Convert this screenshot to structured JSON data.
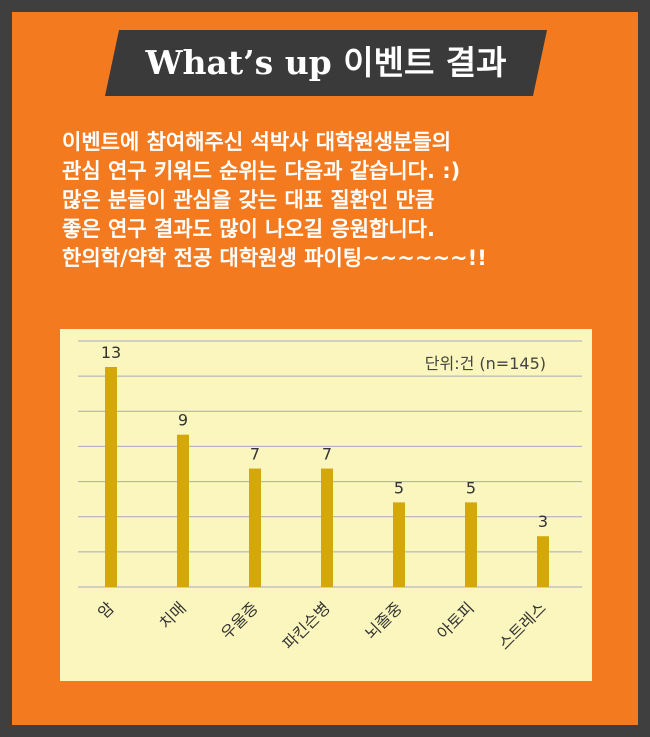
{
  "title": "What’s up 이벤트 결과",
  "intro_lines": [
    "이벤트에 참여해주신 석박사 대학원생분들의",
    "관심 연구 키워드 순위는 다음과 같습니다. :)",
    "많은 분들이 관심을 갖는 대표 질환인 만큼",
    "좋은 연구 결과도 많이 나오길 응원합니다.",
    "한의학/약학 전공 대학원생 파이팅~~~~~~!!"
  ],
  "colors": {
    "background": "#3f3f3f",
    "panel": "#f47a20",
    "banner": "#3a3a3a",
    "plot_bg": "#fbf6bd",
    "bar": "#d4a80c",
    "grid": "#a7a9c0"
  },
  "chart_data": {
    "type": "bar",
    "categories": [
      "암",
      "치매",
      "우울증",
      "파킨슨병",
      "뇌졸중",
      "아토피",
      "스트레스"
    ],
    "values": [
      13,
      9,
      7,
      7,
      5,
      5,
      3
    ],
    "note": "단위:건 (n=145)",
    "ylim": [
      0,
      13
    ],
    "grid": true,
    "data_labels": true
  }
}
